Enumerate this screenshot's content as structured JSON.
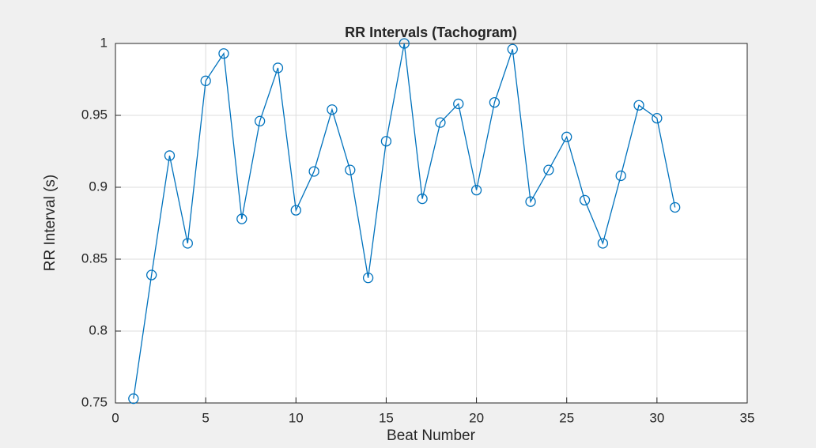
{
  "chart_data": {
    "type": "line",
    "title": "RR Intervals (Tachogram)",
    "x_label": "Beat Number",
    "y_label": "RR Interval (s)",
    "x": [
      1,
      2,
      3,
      4,
      5,
      6,
      7,
      8,
      9,
      10,
      11,
      12,
      13,
      14,
      15,
      16,
      17,
      18,
      19,
      20,
      21,
      22,
      23,
      24,
      25,
      26,
      27,
      28,
      29,
      30,
      31
    ],
    "series": [
      {
        "name": "RR",
        "color": "#0072bd",
        "marker": "circle",
        "values": [
          0.753,
          0.839,
          0.922,
          0.861,
          0.974,
          0.993,
          0.878,
          0.946,
          0.983,
          0.884,
          0.911,
          0.954,
          0.912,
          0.837,
          0.932,
          1.0,
          0.892,
          0.945,
          0.958,
          0.898,
          0.959,
          0.996,
          0.89,
          0.912,
          0.935,
          0.891,
          0.861,
          0.908,
          0.957,
          0.948,
          0.886
        ]
      }
    ],
    "xlim": [
      0,
      35
    ],
    "xticks": [
      0,
      5,
      10,
      15,
      20,
      25,
      30,
      35
    ],
    "ylim": [
      0.75,
      1
    ],
    "yticks": [
      0.75,
      0.8,
      0.85,
      0.9,
      0.95,
      1
    ],
    "grid": true
  }
}
